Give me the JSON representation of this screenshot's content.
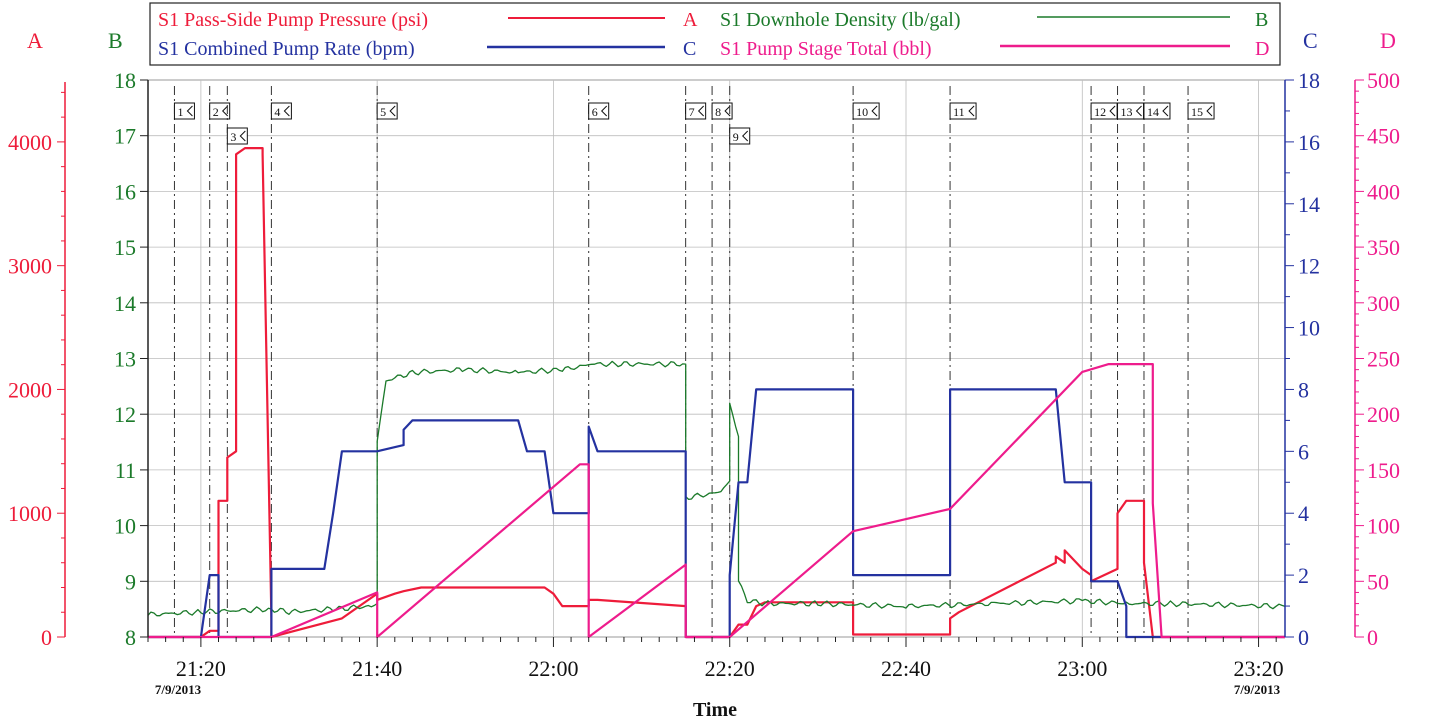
{
  "legend": {
    "items": [
      {
        "label": "S1 Pass-Side Pump Pressure (psi)",
        "letter": "A",
        "color": "#ee1c3a"
      },
      {
        "label": "S1 Downhole Density (lb/gal)",
        "letter": "B",
        "color": "#1b7a2a"
      },
      {
        "label": "S1 Combined Pump Rate (bpm)",
        "letter": "C",
        "color": "#2432a0"
      },
      {
        "label": "S1 Pump Stage Total (bbl)",
        "letter": "D",
        "color": "#ee1c8c"
      }
    ]
  },
  "axis_letters": {
    "A": "A",
    "B": "B",
    "C": "C",
    "D": "D"
  },
  "xaxis": {
    "label": "Time",
    "date_left": "7/9/2013",
    "date_right": "7/9/2013"
  },
  "chart_data": {
    "type": "line",
    "x_unit": "time of day (7/9/2013)",
    "xlim": [
      "21:14",
      "23:23"
    ],
    "x_ticks": [
      "21:20",
      "21:40",
      "22:00",
      "22:20",
      "22:40",
      "23:00",
      "23:20"
    ],
    "axes": {
      "A": {
        "label": "A",
        "ylim": [
          0,
          4500
        ],
        "ticks": [
          0,
          1000,
          2000,
          3000,
          4000
        ],
        "color": "#ee1c3a"
      },
      "B": {
        "label": "B",
        "ylim": [
          8,
          18
        ],
        "ticks": [
          8,
          9,
          10,
          11,
          12,
          13,
          14,
          15,
          16,
          17,
          18
        ],
        "color": "#1b7a2a"
      },
      "C": {
        "label": "C",
        "ylim": [
          0,
          18
        ],
        "ticks": [
          0,
          2,
          4,
          6,
          8,
          10,
          12,
          14,
          16,
          18
        ],
        "color": "#2432a0"
      },
      "D": {
        "label": "D",
        "ylim": [
          0,
          500
        ],
        "ticks": [
          0,
          50,
          100,
          150,
          200,
          250,
          300,
          350,
          400,
          450,
          500
        ],
        "color": "#ee1c8c"
      }
    },
    "grid": true,
    "legend_position": "top",
    "event_markers": [
      {
        "label": "1",
        "t": "21:17"
      },
      {
        "label": "2",
        "t": "21:21"
      },
      {
        "label": "3",
        "t": "21:23"
      },
      {
        "label": "4",
        "t": "21:28"
      },
      {
        "label": "5",
        "t": "21:40"
      },
      {
        "label": "6",
        "t": "22:04"
      },
      {
        "label": "7",
        "t": "22:15"
      },
      {
        "label": "8",
        "t": "22:18"
      },
      {
        "label": "9",
        "t": "22:20"
      },
      {
        "label": "10",
        "t": "22:34"
      },
      {
        "label": "11",
        "t": "22:45"
      },
      {
        "label": "12",
        "t": "23:01"
      },
      {
        "label": "13",
        "t": "23:04"
      },
      {
        "label": "14",
        "t": "23:07"
      },
      {
        "label": "15",
        "t": "23:12"
      }
    ],
    "series": [
      {
        "name": "S1 Pass-Side Pump Pressure (psi)",
        "axis": "A",
        "color": "#ee1c3a",
        "x": [
          "21:14",
          "21:20",
          "21:21",
          "21:22",
          "21:22",
          "21:22",
          "21:23",
          "21:23",
          "21:24",
          "21:24",
          "21:25",
          "21:27",
          "21:27",
          "21:28",
          "21:28",
          "21:36",
          "21:39",
          "21:40",
          "21:40",
          "21:42",
          "21:43",
          "21:45",
          "21:59",
          "22:00",
          "22:01",
          "22:04",
          "22:04",
          "22:05",
          "22:15",
          "22:15",
          "22:20",
          "22:21",
          "22:22",
          "22:23",
          "22:24",
          "22:34",
          "22:34",
          "22:45",
          "22:45",
          "22:46",
          "22:57",
          "22:57",
          "22:58",
          "22:58",
          "23:00",
          "23:01",
          "23:01",
          "23:04",
          "23:04",
          "23:05",
          "23:07",
          "23:07",
          "23:08",
          "23:23"
        ],
        "y": [
          0,
          0,
          50,
          50,
          600,
          1100,
          1100,
          1450,
          1500,
          3900,
          3950,
          3950,
          3900,
          150,
          0,
          150,
          300,
          350,
          300,
          350,
          370,
          400,
          400,
          350,
          250,
          250,
          300,
          300,
          250,
          0,
          0,
          100,
          100,
          250,
          280,
          280,
          20,
          20,
          150,
          200,
          600,
          650,
          600,
          700,
          550,
          500,
          450,
          550,
          1000,
          1100,
          1100,
          600,
          0,
          0
        ]
      },
      {
        "name": "S1 Downhole Density (lb/gal)",
        "axis": "B",
        "color": "#1b7a2a",
        "x": [
          "21:14",
          "21:20",
          "21:28",
          "21:30",
          "21:35",
          "21:39",
          "21:40",
          "21:40",
          "21:41",
          "21:44",
          "21:50",
          "21:56",
          "22:01",
          "22:03",
          "22:04",
          "22:07",
          "22:15",
          "22:15",
          "22:15",
          "22:19",
          "22:20",
          "22:20",
          "22:21",
          "22:21",
          "22:22",
          "22:24",
          "22:30",
          "22:40",
          "22:50",
          "23:00",
          "23:05",
          "23:10",
          "23:23"
        ],
        "y": [
          8.4,
          8.45,
          8.5,
          8.45,
          8.5,
          8.55,
          8.6,
          11.5,
          12.6,
          12.75,
          12.8,
          12.75,
          12.8,
          12.85,
          12.9,
          12.9,
          12.9,
          10.0,
          10.5,
          10.6,
          10.8,
          12.2,
          11.6,
          9.0,
          8.65,
          8.6,
          8.6,
          8.55,
          8.6,
          8.65,
          8.6,
          8.6,
          8.55
        ]
      },
      {
        "name": "S1 Combined Pump Rate (bpm)",
        "axis": "C",
        "color": "#2432a0",
        "x": [
          "21:14",
          "21:20",
          "21:21",
          "21:22",
          "21:22",
          "21:28",
          "21:28",
          "21:34",
          "21:35",
          "21:36",
          "21:39",
          "21:40",
          "21:40",
          "21:43",
          "21:43",
          "21:44",
          "21:56",
          "21:57",
          "21:59",
          "22:00",
          "22:03",
          "22:04",
          "22:04",
          "22:05",
          "22:15",
          "22:15",
          "22:20",
          "22:20",
          "22:21",
          "22:22",
          "22:23",
          "22:24",
          "22:34",
          "22:34",
          "22:45",
          "22:45",
          "22:57",
          "22:58",
          "23:01",
          "23:01",
          "23:04",
          "23:05",
          "23:05",
          "23:23"
        ],
        "y": [
          0,
          0,
          2,
          2,
          0,
          0,
          2.2,
          2.2,
          4,
          6,
          6,
          6,
          6,
          6.2,
          6.7,
          7,
          7,
          6,
          6,
          4,
          4,
          4,
          6.8,
          6,
          6,
          0,
          0,
          2,
          5,
          5,
          8,
          8,
          8,
          2,
          2,
          8,
          8,
          5,
          5,
          1.8,
          1.8,
          1,
          0,
          0
        ]
      },
      {
        "name": "S1 Pump Stage Total (bbl)",
        "axis": "D",
        "color": "#ee1c8c",
        "x": [
          "21:14",
          "21:20",
          "21:28",
          "21:28",
          "21:40",
          "21:40",
          "22:03",
          "22:04",
          "22:04",
          "22:15",
          "22:15",
          "22:20",
          "22:34",
          "22:45",
          "23:00",
          "23:03",
          "23:08",
          "23:08",
          "23:09",
          "23:23"
        ],
        "y": [
          0,
          0,
          0,
          0,
          40,
          0,
          155,
          155,
          0,
          65,
          0,
          0,
          95,
          115,
          238,
          245,
          245,
          120,
          0,
          0
        ]
      }
    ]
  }
}
